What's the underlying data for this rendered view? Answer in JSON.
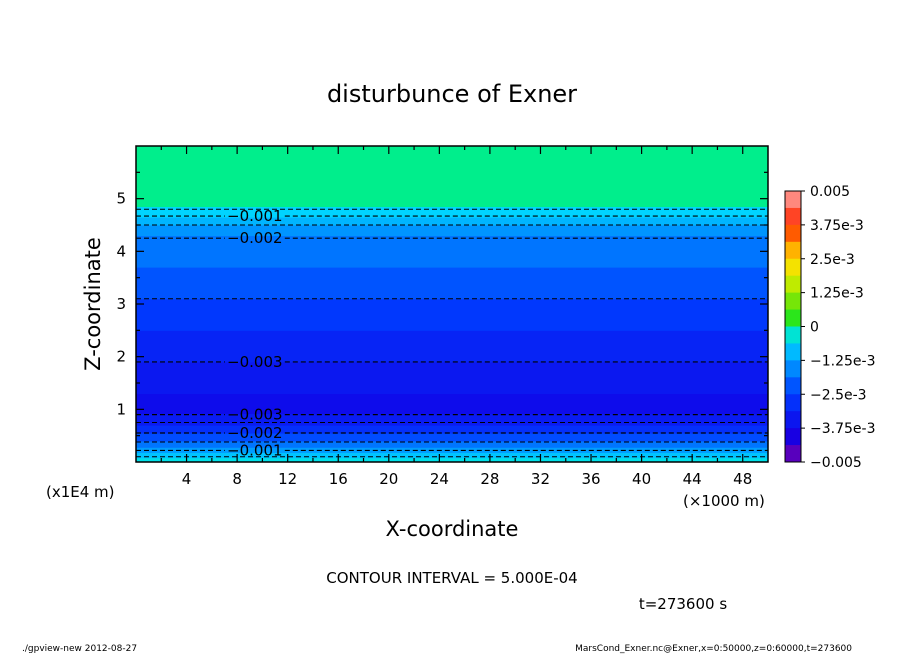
{
  "chart_data": {
    "type": "heatmap",
    "title": "disturbunce of Exner",
    "xlabel": "X-coordinate",
    "ylabel": "Z-coordinate",
    "x_unit": "(×1000 m)",
    "y_unit": "(x1E4 m)",
    "xlim": [
      0,
      50
    ],
    "ylim": [
      0,
      6
    ],
    "x_ticks": [
      "4",
      "8",
      "12",
      "16",
      "20",
      "24",
      "28",
      "32",
      "36",
      "40",
      "44",
      "48"
    ],
    "y_ticks": [
      "1",
      "2",
      "3",
      "4",
      "5"
    ],
    "colorbar": {
      "min": -0.005,
      "max": 0.005,
      "step": 0.00125,
      "labels": [
        "0.005",
        "3.75e-3",
        "2.5e-3",
        "1.25e-3",
        "0",
        "−1.25e-3",
        "−2.5e-3",
        "−3.75e-3",
        "−0.005"
      ]
    },
    "bands": [
      {
        "z0": 0.0,
        "z1": 0.08,
        "value": -0.0004
      },
      {
        "z0": 0.08,
        "z1": 0.18,
        "value": -0.0008
      },
      {
        "z0": 0.18,
        "z1": 0.28,
        "value": -0.0013
      },
      {
        "z0": 0.28,
        "z1": 0.4,
        "value": -0.0018
      },
      {
        "z0": 0.4,
        "z1": 0.55,
        "value": -0.0023
      },
      {
        "z0": 0.55,
        "z1": 0.7,
        "value": -0.0028
      },
      {
        "z0": 0.7,
        "z1": 0.92,
        "value": -0.0033
      },
      {
        "z0": 0.92,
        "z1": 1.3,
        "value": -0.0037
      },
      {
        "z0": 1.3,
        "z1": 1.9,
        "value": -0.0034
      },
      {
        "z0": 1.9,
        "z1": 2.5,
        "value": -0.0031
      },
      {
        "z0": 2.5,
        "z1": 3.1,
        "value": -0.0026
      },
      {
        "z0": 3.1,
        "z1": 3.7,
        "value": -0.0022
      },
      {
        "z0": 3.7,
        "z1": 4.3,
        "value": -0.0018
      },
      {
        "z0": 4.3,
        "z1": 4.5,
        "value": -0.0014
      },
      {
        "z0": 4.5,
        "z1": 4.65,
        "value": -0.001
      },
      {
        "z0": 4.65,
        "z1": 4.85,
        "value": -0.0006
      },
      {
        "z0": 4.85,
        "z1": 6.0,
        "value": 0.0
      }
    ],
    "contours": [
      {
        "z": 4.8,
        "label": ""
      },
      {
        "z": 4.67,
        "label": "−0.001"
      },
      {
        "z": 4.5,
        "label": ""
      },
      {
        "z": 4.25,
        "label": "−0.002"
      },
      {
        "z": 3.1,
        "label": ""
      },
      {
        "z": 1.9,
        "label": "−0.003"
      },
      {
        "z": 0.9,
        "label": "−0.003"
      },
      {
        "z": 0.75,
        "label": ""
      },
      {
        "z": 0.55,
        "label": "−0.002"
      },
      {
        "z": 0.38,
        "label": ""
      },
      {
        "z": 0.22,
        "label": "−0.001"
      },
      {
        "z": 0.1,
        "label": ""
      }
    ]
  },
  "annotations": {
    "contour_interval": "CONTOUR INTERVAL = 5.000E-04",
    "time": "t=273600 s",
    "footer_left": "./gpview-new  2012-08-27",
    "footer_right": "MarsCond_Exner.nc@Exner,x=0:50000,z=0:60000,t=273600"
  }
}
